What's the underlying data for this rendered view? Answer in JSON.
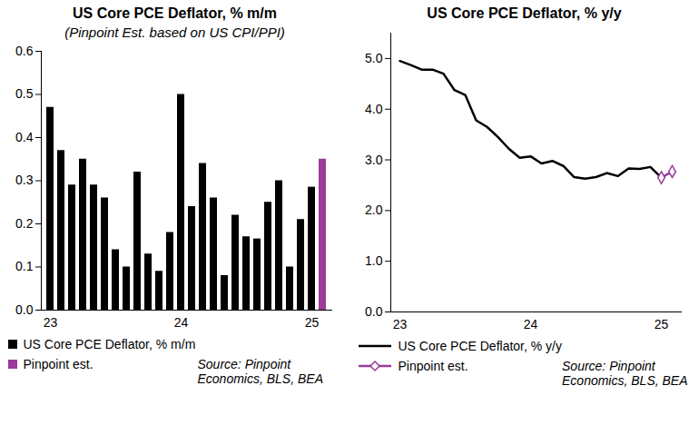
{
  "chart_data": [
    {
      "type": "bar",
      "title": "US Core PCE Deflator, % m/m",
      "subtitle": "(Pinpoint Est. based on US CPI/PPI)",
      "source": "Source: Pinpoint Economics, BLS, BEA",
      "categories": [
        "23",
        null,
        null,
        null,
        null,
        null,
        null,
        null,
        null,
        null,
        null,
        null,
        "24",
        null,
        null,
        null,
        null,
        null,
        null,
        null,
        null,
        null,
        null,
        null,
        "25",
        null
      ],
      "series": [
        {
          "name": "US Core PCE Deflator, % m/m",
          "color": "#000000",
          "values": [
            0.47,
            0.37,
            0.29,
            0.35,
            0.29,
            0.26,
            0.14,
            0.1,
            0.32,
            0.13,
            0.09,
            0.18,
            0.5,
            0.24,
            0.34,
            0.26,
            0.08,
            0.22,
            0.17,
            0.165,
            0.25,
            0.3,
            0.1,
            0.21,
            0.285,
            null
          ]
        },
        {
          "name": "Pinpoint est.",
          "color": "#9b3a9b",
          "values": [
            null,
            null,
            null,
            null,
            null,
            null,
            null,
            null,
            null,
            null,
            null,
            null,
            null,
            null,
            null,
            null,
            null,
            null,
            null,
            null,
            null,
            null,
            null,
            null,
            null,
            0.35
          ]
        }
      ],
      "ylim": [
        0,
        0.6
      ],
      "yticks": [
        {
          "value": 0,
          "label": "0.0"
        },
        {
          "value": 0.1,
          "label": "0.1"
        },
        {
          "value": 0.2,
          "label": "0.2"
        },
        {
          "value": 0.3,
          "label": "0.3"
        },
        {
          "value": 0.4,
          "label": "0.4"
        },
        {
          "value": 0.5,
          "label": "0.5"
        },
        {
          "value": 0.6,
          "label": "0.6"
        }
      ],
      "legend": "bottom"
    },
    {
      "type": "line",
      "title": "US Core PCE Deflator, % y/y",
      "source": "Source: Pinpoint Economics, BLS, BEA",
      "categories": [
        "23",
        null,
        null,
        null,
        null,
        null,
        null,
        null,
        null,
        null,
        null,
        null,
        "24",
        null,
        null,
        null,
        null,
        null,
        null,
        null,
        null,
        null,
        null,
        null,
        "25",
        null
      ],
      "series": [
        {
          "name": "US Core PCE Deflator, % y/y",
          "color": "#000000",
          "line_style": "solid",
          "values": [
            4.95,
            4.87,
            4.78,
            4.78,
            4.7,
            4.38,
            4.28,
            3.78,
            3.65,
            3.45,
            3.22,
            3.04,
            3.07,
            2.93,
            2.98,
            2.88,
            2.66,
            2.63,
            2.66,
            2.74,
            2.68,
            2.83,
            2.82,
            2.86,
            2.65,
            null
          ]
        },
        {
          "name": "Pinpoint est.",
          "color": "#9b3a9b",
          "line_style": "solid",
          "marker": "diamond",
          "values": [
            null,
            null,
            null,
            null,
            null,
            null,
            null,
            null,
            null,
            null,
            null,
            null,
            null,
            null,
            null,
            null,
            null,
            null,
            null,
            null,
            null,
            null,
            null,
            null,
            2.65,
            2.77
          ]
        }
      ],
      "ylim": [
        0,
        5.5
      ],
      "yticks": [
        {
          "value": 0,
          "label": "0.0"
        },
        {
          "value": 1,
          "label": "1.0"
        },
        {
          "value": 2,
          "label": "2.0"
        },
        {
          "value": 3,
          "label": "3.0"
        },
        {
          "value": 4,
          "label": "4.0"
        },
        {
          "value": 5,
          "label": "5.0"
        }
      ],
      "legend": "bottom"
    }
  ]
}
